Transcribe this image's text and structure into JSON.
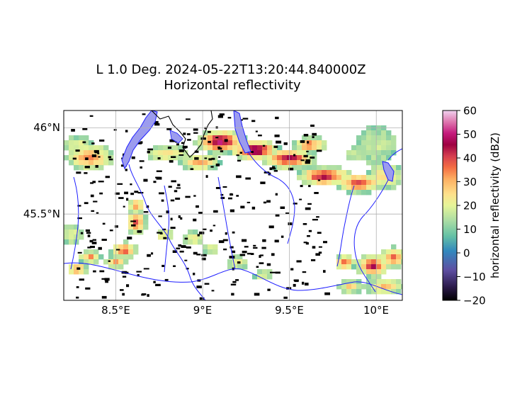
{
  "title": {
    "line1": "L 1.0 Deg. 2024-05-22T13:20:44.840000Z",
    "line2": "Horizontal reflectivity"
  },
  "map": {
    "lon_range": [
      8.2,
      10.15
    ],
    "lat_range": [
      45.0,
      46.1
    ],
    "x_ticks": [
      {
        "value": 8.5,
        "label": "8.5°E"
      },
      {
        "value": 9.0,
        "label": "9°E"
      },
      {
        "value": 9.5,
        "label": "9.5°E"
      },
      {
        "value": 10.0,
        "label": "10°E"
      }
    ],
    "y_ticks": [
      {
        "value": 46.0,
        "label": "46°N"
      },
      {
        "value": 45.5,
        "label": "45.5°N"
      }
    ],
    "grid": true,
    "colors": {
      "rivers": "#1f1fff",
      "lakes": "#9999ee",
      "borders": "#000000",
      "grid": "#b0b0b0"
    }
  },
  "colorbar": {
    "label": "horizontal reflectivity (dBZ)",
    "min": -20,
    "max": 60,
    "ticks": [
      {
        "value": 60,
        "label": "60"
      },
      {
        "value": 50,
        "label": "50"
      },
      {
        "value": 40,
        "label": "40"
      },
      {
        "value": 30,
        "label": "30"
      },
      {
        "value": 20,
        "label": "20"
      },
      {
        "value": 10,
        "label": "10"
      },
      {
        "value": 0,
        "label": "0"
      },
      {
        "value": -10,
        "label": "−10"
      },
      {
        "value": -20,
        "label": "−20"
      }
    ],
    "colormap": "spectral"
  },
  "chart_data": {
    "type": "heatmap",
    "variable": "horizontal reflectivity",
    "units": "dBZ",
    "value_range": [
      -20,
      60
    ],
    "precipitation_cells": [
      {
        "lon": 8.35,
        "lat": 45.83,
        "rx": 0.14,
        "ry": 0.08,
        "peak": 38
      },
      {
        "lon": 8.28,
        "lat": 45.9,
        "rx": 0.1,
        "ry": 0.05,
        "peak": 22
      },
      {
        "lon": 8.35,
        "lat": 45.25,
        "rx": 0.07,
        "ry": 0.04,
        "peak": 35
      },
      {
        "lon": 8.28,
        "lat": 45.18,
        "rx": 0.06,
        "ry": 0.04,
        "peak": 40
      },
      {
        "lon": 8.5,
        "lat": 45.22,
        "rx": 0.07,
        "ry": 0.04,
        "peak": 32
      },
      {
        "lon": 8.55,
        "lat": 45.29,
        "rx": 0.08,
        "ry": 0.05,
        "peak": 44
      },
      {
        "lon": 8.62,
        "lat": 45.45,
        "rx": 0.06,
        "ry": 0.08,
        "peak": 40
      },
      {
        "lon": 8.62,
        "lat": 45.55,
        "rx": 0.05,
        "ry": 0.04,
        "peak": 38
      },
      {
        "lon": 8.78,
        "lat": 45.38,
        "rx": 0.05,
        "ry": 0.04,
        "peak": 30
      },
      {
        "lon": 8.95,
        "lat": 45.36,
        "rx": 0.06,
        "ry": 0.04,
        "peak": 28
      },
      {
        "lon": 9.05,
        "lat": 45.3,
        "rx": 0.05,
        "ry": 0.03,
        "peak": 25
      },
      {
        "lon": 9.2,
        "lat": 45.22,
        "rx": 0.06,
        "ry": 0.04,
        "peak": 26
      },
      {
        "lon": 9.35,
        "lat": 45.15,
        "rx": 0.06,
        "ry": 0.03,
        "peak": 24
      },
      {
        "lon": 8.25,
        "lat": 45.38,
        "rx": 0.06,
        "ry": 0.06,
        "peak": 24
      },
      {
        "lon": 8.8,
        "lat": 45.85,
        "rx": 0.12,
        "ry": 0.05,
        "peak": 30
      },
      {
        "lon": 8.98,
        "lat": 45.8,
        "rx": 0.12,
        "ry": 0.05,
        "peak": 34
      },
      {
        "lon": 9.1,
        "lat": 45.92,
        "rx": 0.15,
        "ry": 0.07,
        "peak": 55
      },
      {
        "lon": 9.3,
        "lat": 45.87,
        "rx": 0.15,
        "ry": 0.06,
        "peak": 58
      },
      {
        "lon": 9.5,
        "lat": 45.82,
        "rx": 0.16,
        "ry": 0.06,
        "peak": 50
      },
      {
        "lon": 9.7,
        "lat": 45.72,
        "rx": 0.16,
        "ry": 0.06,
        "peak": 52
      },
      {
        "lon": 9.9,
        "lat": 45.68,
        "rx": 0.14,
        "ry": 0.06,
        "peak": 45
      },
      {
        "lon": 10.05,
        "lat": 45.72,
        "rx": 0.1,
        "ry": 0.08,
        "peak": 30
      },
      {
        "lon": 9.62,
        "lat": 45.9,
        "rx": 0.1,
        "ry": 0.05,
        "peak": 40
      },
      {
        "lon": 9.88,
        "lat": 45.85,
        "rx": 0.06,
        "ry": 0.04,
        "peak": 20
      },
      {
        "lon": 10.0,
        "lat": 45.9,
        "rx": 0.12,
        "ry": 0.12,
        "peak": 18
      },
      {
        "lon": 9.82,
        "lat": 45.22,
        "rx": 0.06,
        "ry": 0.05,
        "peak": 40
      },
      {
        "lon": 9.98,
        "lat": 45.2,
        "rx": 0.1,
        "ry": 0.07,
        "peak": 48
      },
      {
        "lon": 10.1,
        "lat": 45.25,
        "rx": 0.08,
        "ry": 0.06,
        "peak": 40
      },
      {
        "lon": 10.05,
        "lat": 45.08,
        "rx": 0.12,
        "ry": 0.05,
        "peak": 32
      },
      {
        "lon": 9.85,
        "lat": 45.08,
        "rx": 0.08,
        "ry": 0.04,
        "peak": 28
      }
    ]
  }
}
